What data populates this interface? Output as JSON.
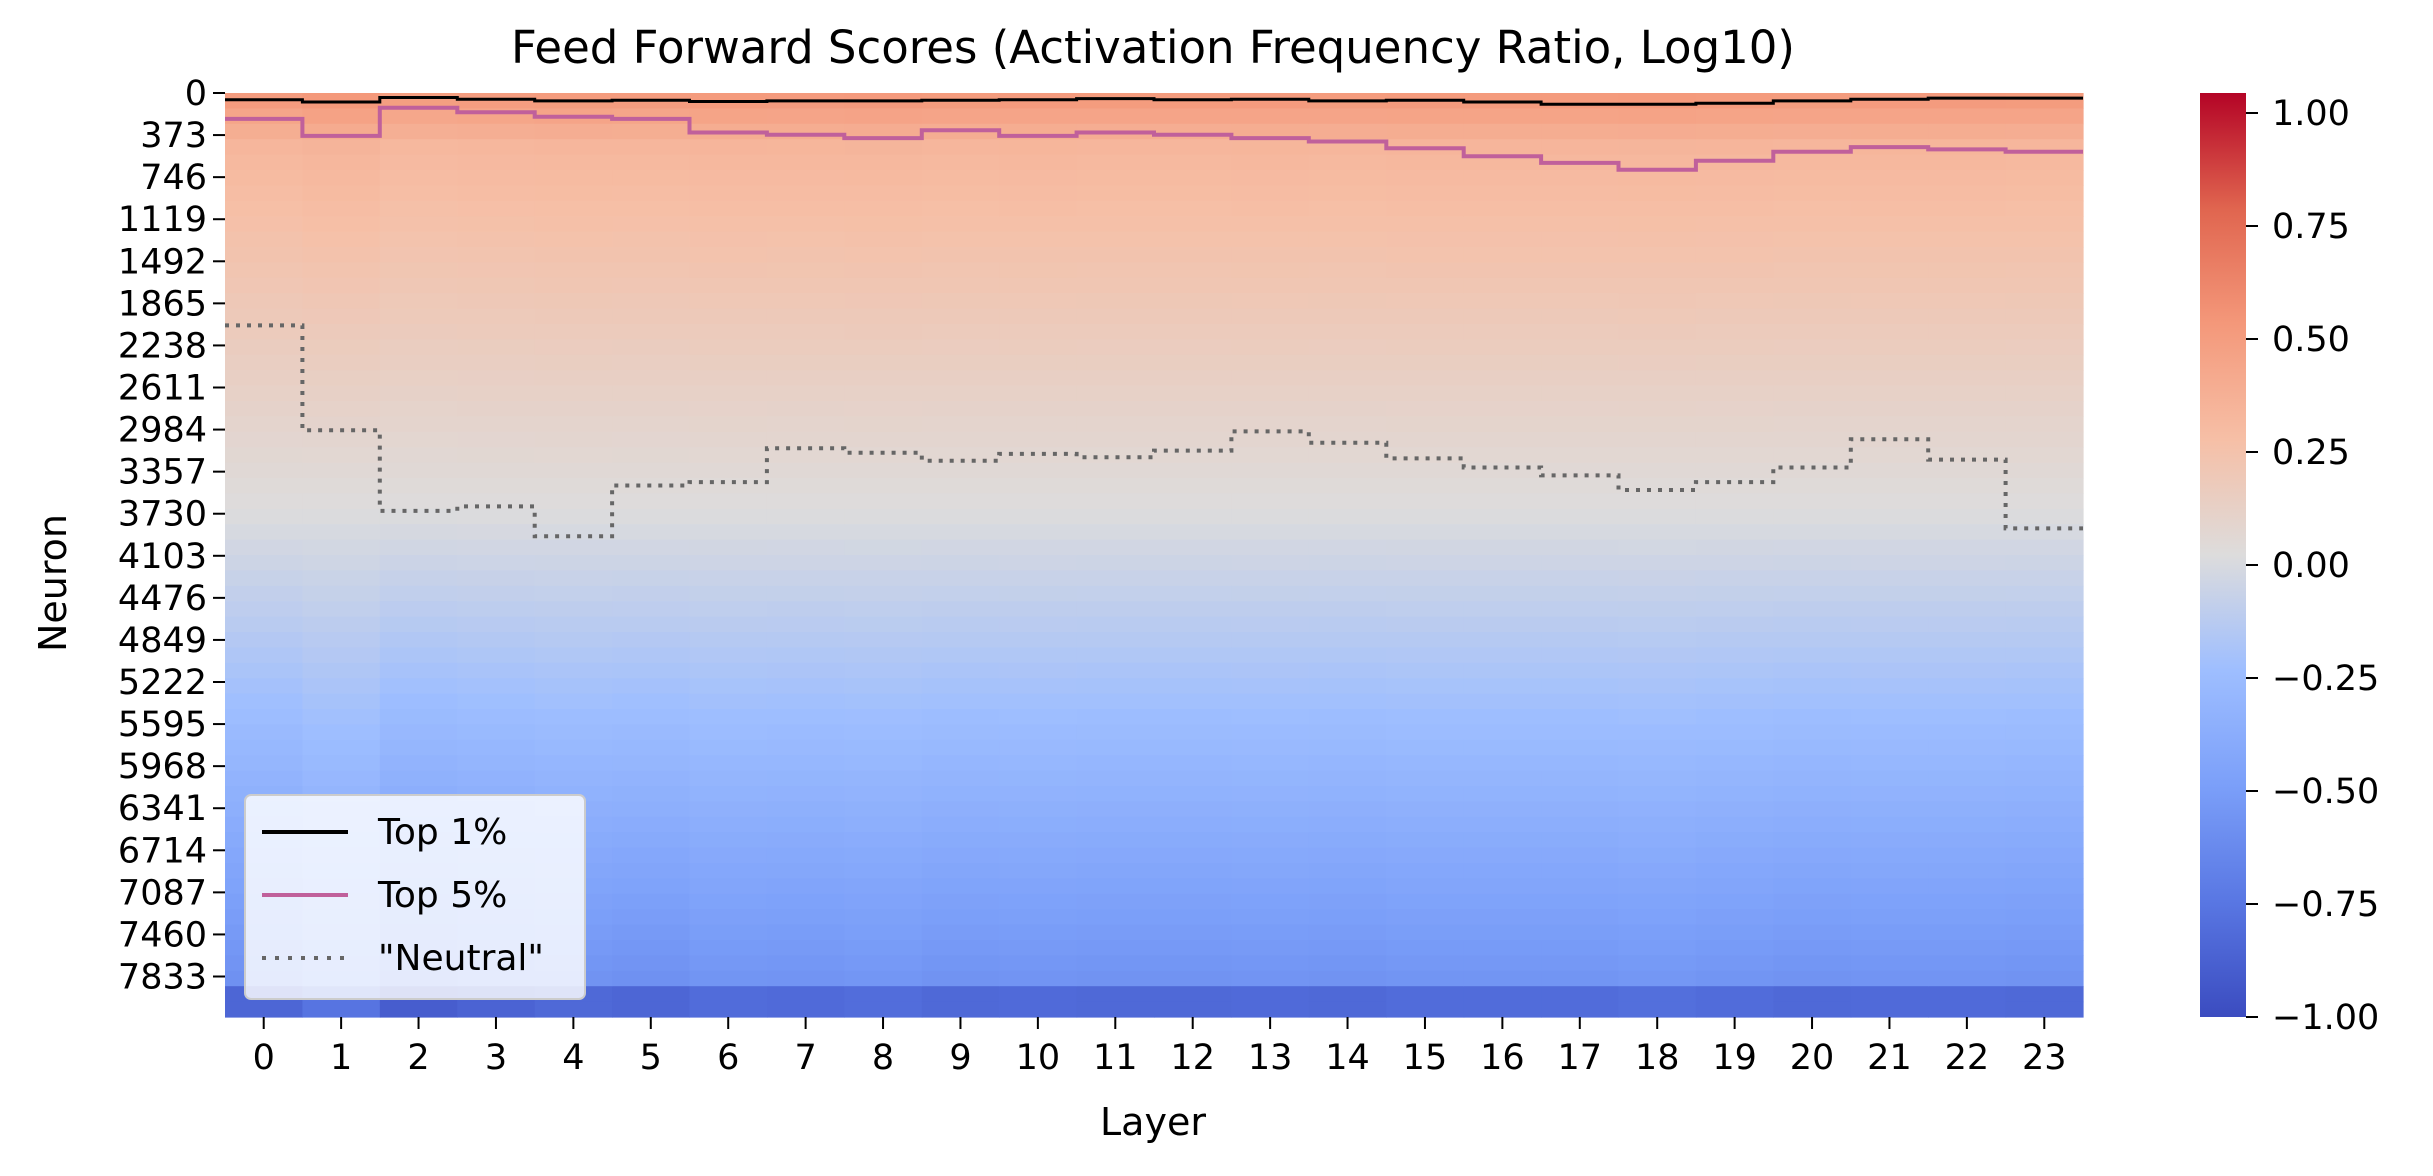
{
  "chart_data": {
    "type": "heatmap",
    "title": "Feed Forward Scores (Activation Frequency Ratio, Log10)",
    "xlabel": "Layer",
    "ylabel": "Neuron",
    "x_tick_labels": [
      "0",
      "1",
      "2",
      "3",
      "4",
      "5",
      "6",
      "7",
      "8",
      "9",
      "10",
      "11",
      "12",
      "13",
      "14",
      "15",
      "16",
      "17",
      "18",
      "19",
      "20",
      "21",
      "22",
      "23"
    ],
    "y_tick_labels": [
      "0",
      "373",
      "746",
      "1119",
      "1492",
      "1865",
      "2238",
      "2611",
      "2984",
      "3357",
      "3730",
      "4103",
      "4476",
      "4849",
      "5222",
      "5595",
      "5968",
      "6341",
      "6714",
      "7087",
      "7460",
      "7833"
    ],
    "y_tick_values": [
      0,
      373,
      746,
      1119,
      1492,
      1865,
      2238,
      2611,
      2984,
      3357,
      3730,
      4103,
      4476,
      4849,
      5222,
      5595,
      5968,
      6341,
      6714,
      7087,
      7460,
      7833
    ],
    "ylim": [
      0,
      8192
    ],
    "colorbar": {
      "colormap": "coolwarm",
      "range": [
        -1.0,
        1.0
      ],
      "tick_values": [
        1.0,
        0.75,
        0.5,
        0.25,
        0.0,
        -0.25,
        -0.5,
        -0.75,
        -1.0
      ],
      "tick_labels": [
        "1.00",
        "0.75",
        "0.50",
        "0.25",
        "0.00",
        "−0.25",
        "−0.50",
        "−0.75",
        "−1.00"
      ]
    },
    "legend": {
      "placement": "lower-left",
      "entries": [
        {
          "label": "Top 1%",
          "color": "#000000",
          "style": "solid"
        },
        {
          "label": "Top 5%",
          "color": "#c0609b",
          "style": "solid"
        },
        {
          "label": "\"Neutral\"",
          "color": "#666666",
          "style": "dotted"
        }
      ]
    },
    "series": [
      {
        "name": "Top 1%",
        "color": "#000000",
        "style": "solid",
        "values": [
          60,
          80,
          40,
          55,
          70,
          65,
          75,
          70,
          70,
          65,
          60,
          50,
          60,
          55,
          70,
          65,
          80,
          100,
          100,
          90,
          70,
          55,
          45,
          45
        ]
      },
      {
        "name": "Top 5%",
        "color": "#c0609b",
        "style": "solid",
        "values": [
          230,
          380,
          130,
          170,
          210,
          230,
          350,
          370,
          400,
          330,
          380,
          350,
          370,
          400,
          430,
          490,
          560,
          620,
          680,
          600,
          520,
          480,
          500,
          520
        ]
      },
      {
        "name": "\"Neutral\"",
        "color": "#666666",
        "style": "dotted",
        "values": [
          2060,
          2990,
          3705,
          3665,
          3930,
          3480,
          3450,
          3150,
          3190,
          3260,
          3200,
          3230,
          3170,
          3000,
          3100,
          3240,
          3320,
          3390,
          3520,
          3450,
          3320,
          3070,
          3250,
          3860
        ]
      }
    ],
    "column_shading": [
      0.0,
      0.1,
      -0.06,
      -0.02,
      0.02,
      0.0,
      0.04,
      0.03,
      0.05,
      0.02,
      0.03,
      0.02,
      0.02,
      0.03,
      0.02,
      0.04,
      0.04,
      0.04,
      0.06,
      0.04,
      0.02,
      0.03,
      0.03,
      0.02
    ]
  }
}
